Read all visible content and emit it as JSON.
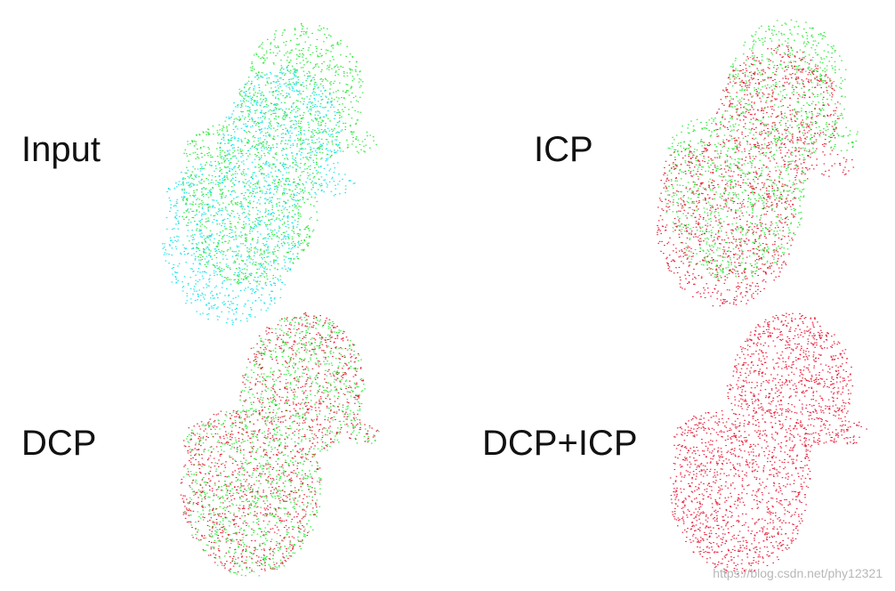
{
  "panels": {
    "input": {
      "label": "Input",
      "clouds": [
        "#2ee83a",
        "#19e3ea"
      ]
    },
    "icp": {
      "label": "ICP",
      "clouds": [
        "#2ee83a",
        "#e8203a"
      ]
    },
    "dcp": {
      "label": "DCP",
      "clouds": [
        "#2ee83a",
        "#e8203a"
      ]
    },
    "dcp_icp": {
      "label": "DCP+ICP",
      "clouds": [
        "#e8203a"
      ]
    }
  },
  "colors": {
    "source_cloud": "#2ee83a",
    "input_target_cloud": "#19e3ea",
    "registered_cloud": "#e8203a"
  },
  "watermark": "https://blog.csdn.net/phy12321"
}
